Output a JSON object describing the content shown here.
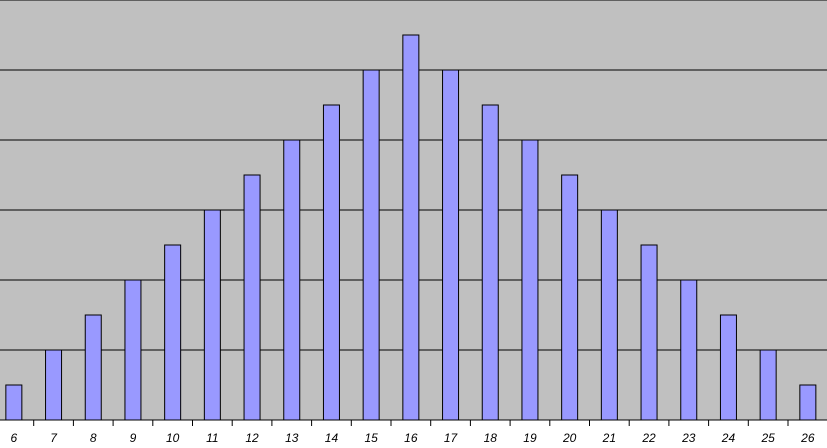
{
  "chart_data": {
    "type": "bar",
    "categories": [
      "6",
      "7",
      "8",
      "9",
      "10",
      "11",
      "12",
      "13",
      "14",
      "15",
      "16",
      "17",
      "18",
      "19",
      "20",
      "21",
      "22",
      "23",
      "24",
      "25",
      "26"
    ],
    "values": [
      1,
      2,
      3,
      4,
      5,
      6,
      7,
      8,
      9,
      10,
      11,
      10,
      9,
      8,
      7,
      6,
      5,
      4,
      3,
      2,
      1
    ],
    "color": "#9999ff",
    "ylim": [
      0,
      12
    ],
    "yticks": [
      0,
      2,
      4,
      6,
      8,
      10,
      12
    ],
    "grid": true
  }
}
